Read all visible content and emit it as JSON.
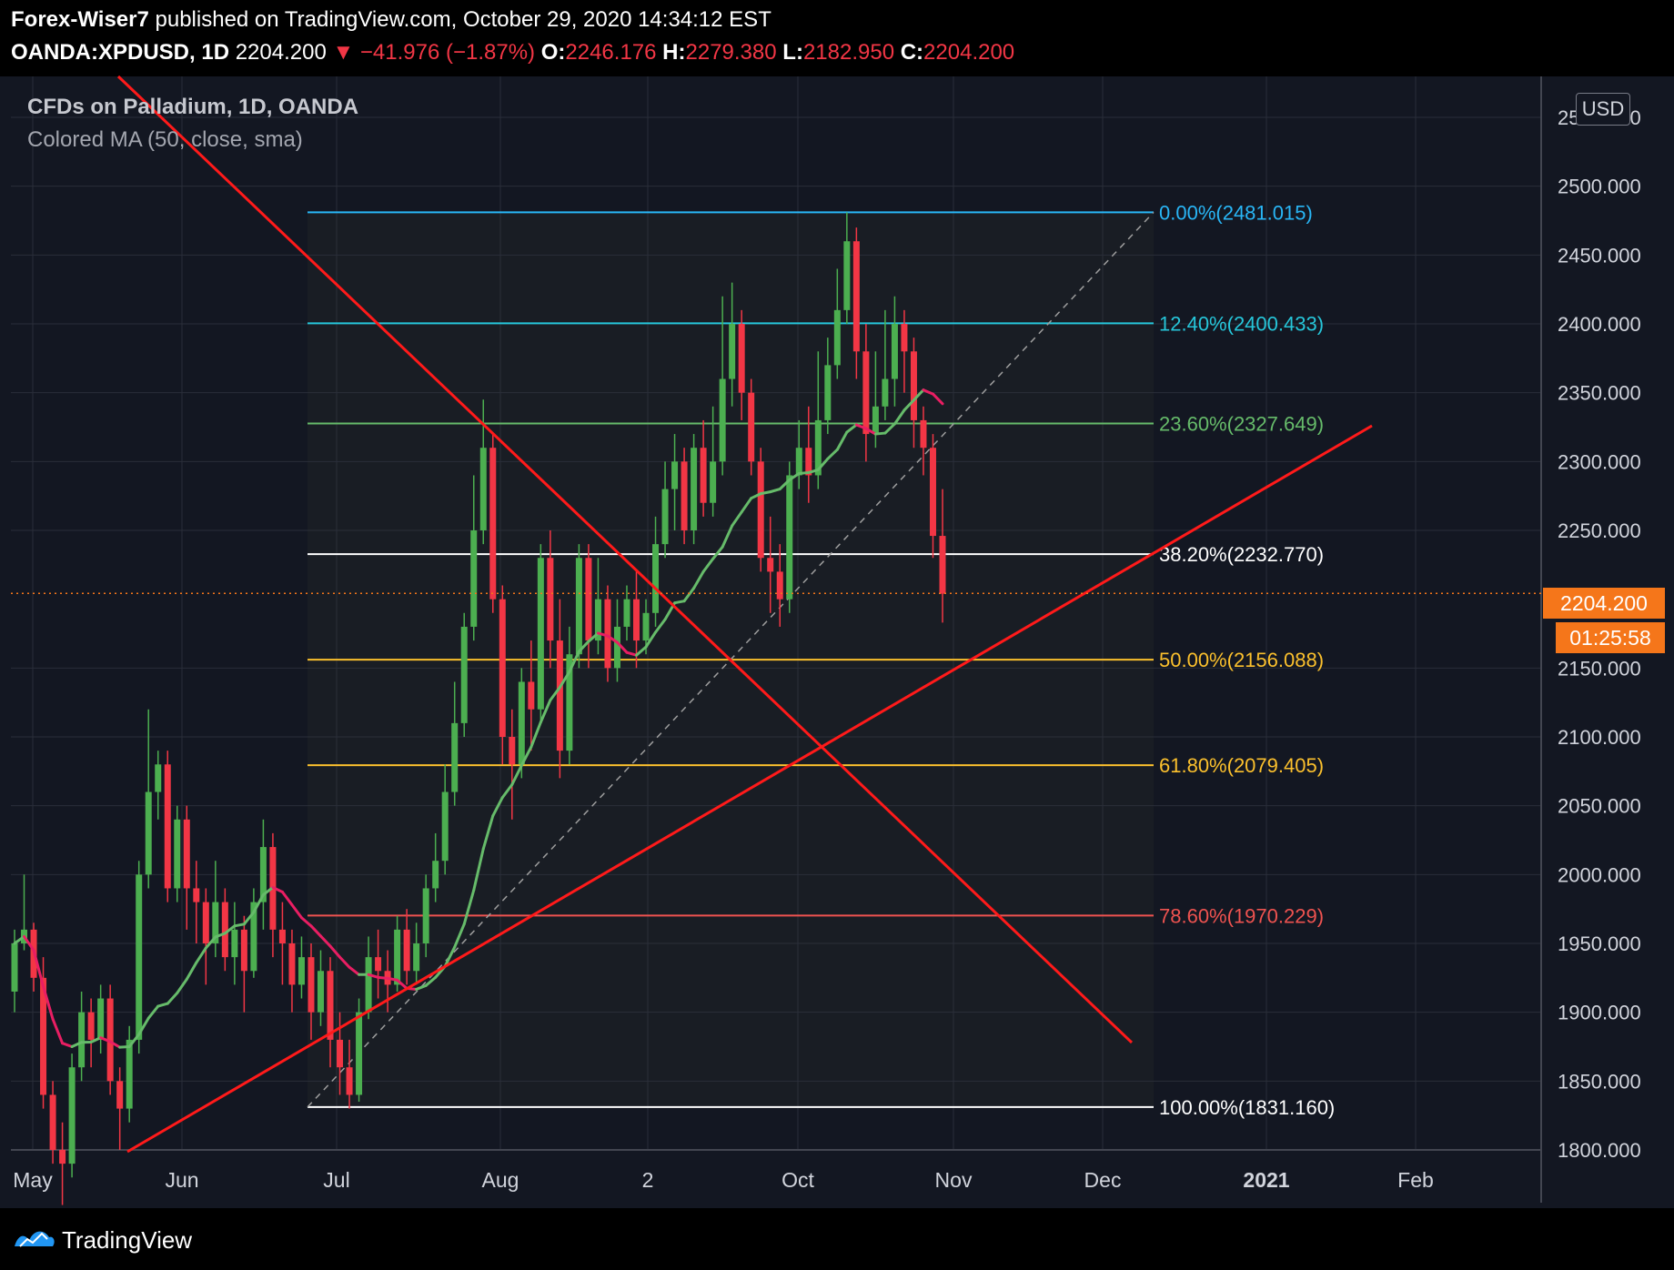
{
  "header": {
    "author": "Forex-Wiser7",
    "published": "published on TradingView.com, October 29, 2020 14:34:12 EST",
    "symbol": "OANDA:XPDUSD, 1D",
    "last": "2204.200",
    "change": "▼ −41.976 (−1.87%)",
    "o_label": "O:",
    "o_val": "2246.176",
    "h_label": "H:",
    "h_val": "2279.380",
    "l_label": "L:",
    "l_val": "2182.950",
    "c_label": "C:",
    "c_val": "2204.200"
  },
  "legend": {
    "title": "CFDs on Palladium, 1D, OANDA",
    "indicator": "Colored MA (50, close, sma)"
  },
  "currency_button": "USD",
  "price_tag": "2204.200",
  "countdown": "01:25:58",
  "footer": {
    "brand": "TradingView"
  },
  "colors": {
    "background": "#131722",
    "up": "#4caf50",
    "down": "#f23645",
    "ma_up": "#66bb6a",
    "ma_down": "#e91e63",
    "trendline": "#ff1a1a",
    "accent": "#f5761a"
  },
  "chart_data": {
    "type": "candlestick",
    "y_axis_labels": [
      "2550.000",
      "2500.000",
      "2450.000",
      "2400.000",
      "2350.000",
      "2300.000",
      "2250.000",
      "2150.000",
      "2100.000",
      "2050.000",
      "2000.000",
      "1950.000",
      "1900.000",
      "1850.000",
      "1800.000"
    ],
    "x_axis_labels": [
      "May",
      "Jun",
      "Jul",
      "Aug",
      "2",
      "Oct",
      "Nov",
      "Dec",
      "2021",
      "Feb"
    ],
    "ylim": [
      1800,
      2580
    ],
    "fib_levels": [
      {
        "label": "0.00%(2481.015)",
        "value": 2481.015,
        "color": "#29b6f6"
      },
      {
        "label": "12.40%(2400.433)",
        "value": 2400.433,
        "color": "#26c6da"
      },
      {
        "label": "23.60%(2327.649)",
        "value": 2327.649,
        "color": "#66bb6a"
      },
      {
        "label": "38.20%(2232.770)",
        "value": 2232.77,
        "color": "#ffffff"
      },
      {
        "label": "50.00%(2156.088)",
        "value": 2156.088,
        "color": "#fbc02d"
      },
      {
        "label": "61.80%(2079.405)",
        "value": 2079.405,
        "color": "#fbc02d"
      },
      {
        "label": "78.60%(1970.229)",
        "value": 1970.229,
        "color": "#ef5350"
      },
      {
        "label": "100.00%(1831.160)",
        "value": 1831.16,
        "color": "#ffffff"
      }
    ],
    "last_price": 2204.2,
    "candles": [
      [
        1915,
        1950,
        1900,
        1960
      ],
      [
        1950,
        1960,
        1945,
        2000
      ],
      [
        1960,
        1925,
        1915,
        1965
      ],
      [
        1925,
        1840,
        1830,
        1940
      ],
      [
        1840,
        1800,
        1790,
        1850
      ],
      [
        1800,
        1790,
        1760,
        1820
      ],
      [
        1790,
        1860,
        1780,
        1870
      ],
      [
        1860,
        1900,
        1850,
        1915
      ],
      [
        1900,
        1880,
        1860,
        1910
      ],
      [
        1880,
        1910,
        1870,
        1920
      ],
      [
        1910,
        1850,
        1840,
        1920
      ],
      [
        1850,
        1830,
        1800,
        1860
      ],
      [
        1830,
        1880,
        1820,
        1890
      ],
      [
        1880,
        2000,
        1870,
        2010
      ],
      [
        2000,
        2060,
        1990,
        2120
      ],
      [
        2060,
        2080,
        2040,
        2090
      ],
      [
        2080,
        1990,
        1980,
        2090
      ],
      [
        1990,
        2040,
        1980,
        2050
      ],
      [
        2040,
        1990,
        1960,
        2050
      ],
      [
        1990,
        1980,
        1950,
        2010
      ],
      [
        1980,
        1950,
        1920,
        1990
      ],
      [
        1950,
        1980,
        1940,
        2010
      ],
      [
        1980,
        1940,
        1930,
        1990
      ],
      [
        1940,
        1960,
        1920,
        1980
      ],
      [
        1960,
        1930,
        1900,
        1970
      ],
      [
        1930,
        1980,
        1925,
        1990
      ],
      [
        1980,
        2020,
        1960,
        2040
      ],
      [
        2020,
        1960,
        1940,
        2030
      ],
      [
        1960,
        1950,
        1920,
        1980
      ],
      [
        1950,
        1920,
        1900,
        1960
      ],
      [
        1920,
        1940,
        1910,
        1955
      ],
      [
        1940,
        1900,
        1880,
        1950
      ],
      [
        1900,
        1930,
        1890,
        1945
      ],
      [
        1930,
        1880,
        1860,
        1940
      ],
      [
        1880,
        1860,
        1840,
        1900
      ],
      [
        1860,
        1840,
        1830,
        1880
      ],
      [
        1840,
        1900,
        1835,
        1910
      ],
      [
        1900,
        1940,
        1895,
        1955
      ],
      [
        1940,
        1930,
        1910,
        1960
      ],
      [
        1930,
        1920,
        1900,
        1945
      ],
      [
        1920,
        1960,
        1915,
        1970
      ],
      [
        1960,
        1930,
        1920,
        1975
      ],
      [
        1930,
        1950,
        1920,
        1965
      ],
      [
        1950,
        1990,
        1940,
        2000
      ],
      [
        1990,
        2010,
        1980,
        2030
      ],
      [
        2010,
        2060,
        2000,
        2080
      ],
      [
        2060,
        2110,
        2050,
        2140
      ],
      [
        2110,
        2180,
        2100,
        2190
      ],
      [
        2180,
        2250,
        2170,
        2290
      ],
      [
        2250,
        2310,
        2240,
        2345
      ],
      [
        2310,
        2200,
        2190,
        2320
      ],
      [
        2200,
        2100,
        2080,
        2210
      ],
      [
        2100,
        2080,
        2040,
        2120
      ],
      [
        2080,
        2140,
        2070,
        2150
      ],
      [
        2140,
        2120,
        2090,
        2170
      ],
      [
        2120,
        2230,
        2110,
        2240
      ],
      [
        2230,
        2170,
        2150,
        2250
      ],
      [
        2170,
        2090,
        2070,
        2200
      ],
      [
        2090,
        2160,
        2080,
        2180
      ],
      [
        2160,
        2230,
        2150,
        2240
      ],
      [
        2230,
        2170,
        2150,
        2240
      ],
      [
        2170,
        2200,
        2160,
        2230
      ],
      [
        2200,
        2150,
        2140,
        2210
      ],
      [
        2150,
        2180,
        2140,
        2200
      ],
      [
        2180,
        2200,
        2170,
        2210
      ],
      [
        2200,
        2170,
        2150,
        2220
      ],
      [
        2170,
        2190,
        2160,
        2200
      ],
      [
        2190,
        2240,
        2180,
        2260
      ],
      [
        2240,
        2280,
        2230,
        2300
      ],
      [
        2280,
        2300,
        2250,
        2320
      ],
      [
        2300,
        2250,
        2240,
        2310
      ],
      [
        2250,
        2310,
        2240,
        2320
      ],
      [
        2310,
        2270,
        2260,
        2330
      ],
      [
        2270,
        2300,
        2260,
        2340
      ],
      [
        2300,
        2360,
        2290,
        2420
      ],
      [
        2360,
        2400,
        2340,
        2430
      ],
      [
        2400,
        2350,
        2330,
        2410
      ],
      [
        2350,
        2300,
        2290,
        2360
      ],
      [
        2300,
        2230,
        2220,
        2310
      ],
      [
        2230,
        2220,
        2190,
        2260
      ],
      [
        2220,
        2200,
        2180,
        2240
      ],
      [
        2200,
        2290,
        2190,
        2300
      ],
      [
        2290,
        2310,
        2280,
        2330
      ],
      [
        2310,
        2290,
        2270,
        2340
      ],
      [
        2290,
        2330,
        2280,
        2380
      ],
      [
        2330,
        2370,
        2320,
        2390
      ],
      [
        2370,
        2410,
        2360,
        2440
      ],
      [
        2410,
        2460,
        2400,
        2481
      ],
      [
        2460,
        2380,
        2360,
        2470
      ],
      [
        2380,
        2320,
        2300,
        2400
      ],
      [
        2320,
        2340,
        2310,
        2380
      ],
      [
        2340,
        2360,
        2330,
        2410
      ],
      [
        2360,
        2400,
        2340,
        2420
      ],
      [
        2400,
        2380,
        2350,
        2410
      ],
      [
        2380,
        2330,
        2310,
        2390
      ],
      [
        2330,
        2310,
        2290,
        2340
      ],
      [
        2310,
        2246,
        2230,
        2320
      ],
      [
        2246,
        2204,
        2183,
        2280
      ]
    ]
  }
}
